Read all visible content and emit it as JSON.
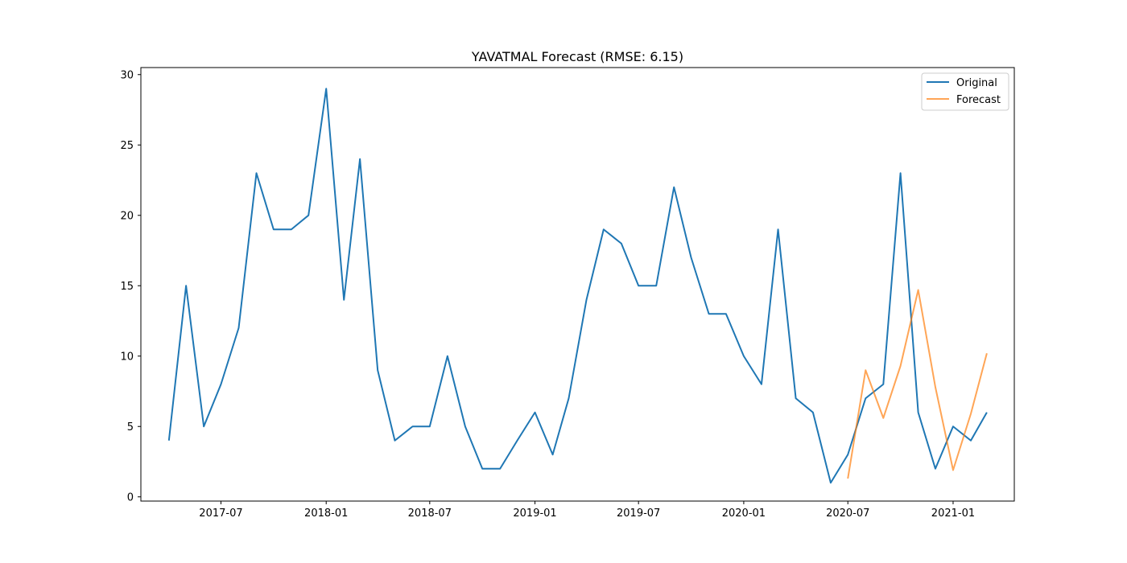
{
  "chart_data": {
    "type": "line",
    "title": "YAVATMAL Forecast (RMSE: 6.15)",
    "xlabel": "",
    "ylabel": "",
    "x_axis_type": "date",
    "x_range": [
      "2017-02-11",
      "2021-04-18"
    ],
    "ylim": [
      -0.3,
      30.5
    ],
    "x_ticks": [
      "2017-07-01",
      "2018-01-01",
      "2018-07-01",
      "2019-01-01",
      "2019-07-01",
      "2020-01-01",
      "2020-07-01",
      "2021-01-01"
    ],
    "x_tick_labels": [
      "2017-07",
      "2018-01",
      "2018-07",
      "2019-01",
      "2019-07",
      "2020-01",
      "2020-07",
      "2021-01"
    ],
    "y_ticks": [
      0,
      5,
      10,
      15,
      20,
      25,
      30
    ],
    "y_tick_labels": [
      "0",
      "5",
      "10",
      "15",
      "20",
      "25",
      "30"
    ],
    "grid": false,
    "legend_position": "top-right",
    "series": [
      {
        "name": "Original",
        "color": "#1f77b4",
        "x": [
          "2017-04-01",
          "2017-05-01",
          "2017-06-01",
          "2017-07-01",
          "2017-08-01",
          "2017-09-01",
          "2017-10-01",
          "2017-11-01",
          "2017-12-01",
          "2018-01-01",
          "2018-02-01",
          "2018-03-01",
          "2018-04-01",
          "2018-05-01",
          "2018-06-01",
          "2018-07-01",
          "2018-08-01",
          "2018-09-01",
          "2018-10-01",
          "2018-11-01",
          "2018-12-01",
          "2019-01-01",
          "2019-02-01",
          "2019-03-01",
          "2019-04-01",
          "2019-05-01",
          "2019-06-01",
          "2019-07-01",
          "2019-08-01",
          "2019-09-01",
          "2019-10-01",
          "2019-11-01",
          "2019-12-01",
          "2020-01-01",
          "2020-02-01",
          "2020-03-01",
          "2020-04-01",
          "2020-05-01",
          "2020-06-01",
          "2020-07-01",
          "2020-08-01",
          "2020-09-01",
          "2020-10-01",
          "2020-11-01",
          "2020-12-01",
          "2021-01-01",
          "2021-02-01",
          "2021-03-01"
        ],
        "values": [
          4,
          15,
          5,
          8,
          12,
          23,
          19,
          19,
          20,
          29,
          14,
          24,
          9,
          4,
          5,
          5,
          10,
          5,
          2,
          2,
          4,
          6,
          3,
          7,
          14,
          19,
          18,
          15,
          15,
          22,
          17,
          13,
          13,
          10,
          8,
          19,
          7,
          6,
          1,
          3,
          7,
          8,
          23,
          6,
          2,
          5,
          4,
          6
        ]
      },
      {
        "name": "Forecast",
        "color": "#ff7f0e",
        "opacity": 0.7,
        "x": [
          "2020-07-01",
          "2020-08-01",
          "2020-09-01",
          "2020-10-01",
          "2020-11-01",
          "2020-12-01",
          "2021-01-01",
          "2021-02-01",
          "2021-03-01"
        ],
        "values": [
          1.3,
          9.0,
          5.6,
          9.3,
          14.7,
          7.8,
          1.9,
          5.9,
          10.2
        ]
      }
    ]
  }
}
